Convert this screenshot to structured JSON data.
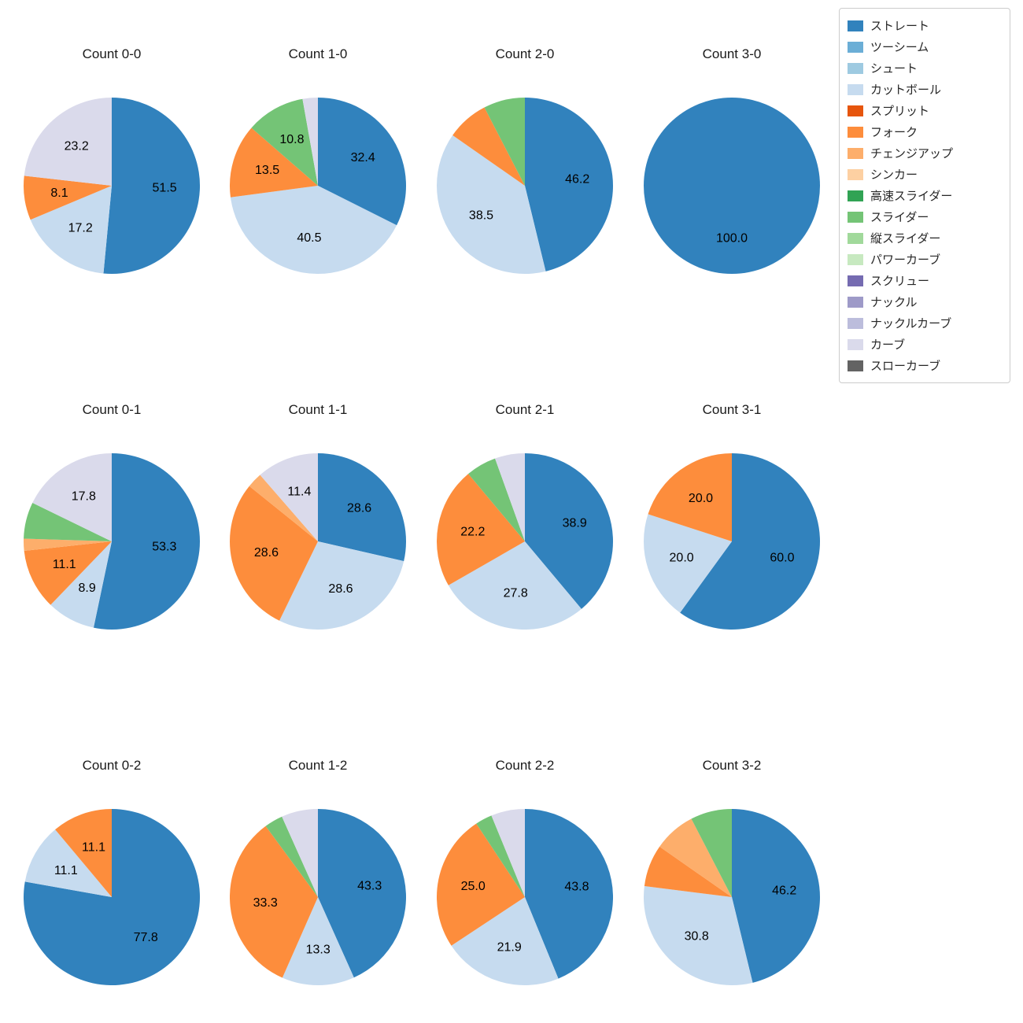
{
  "legend": {
    "items": [
      {
        "label": "ストレート",
        "color": "#3182bd"
      },
      {
        "label": "ツーシーム",
        "color": "#6baed6"
      },
      {
        "label": "シュート",
        "color": "#9ecae1"
      },
      {
        "label": "カットボール",
        "color": "#c6dbef"
      },
      {
        "label": "スプリット",
        "color": "#e6550d"
      },
      {
        "label": "フォーク",
        "color": "#fd8d3c"
      },
      {
        "label": "チェンジアップ",
        "color": "#fdae6b"
      },
      {
        "label": "シンカー",
        "color": "#fdd0a2"
      },
      {
        "label": "高速スライダー",
        "color": "#31a354"
      },
      {
        "label": "スライダー",
        "color": "#74c476"
      },
      {
        "label": "縦スライダー",
        "color": "#a1d99b"
      },
      {
        "label": "パワーカーブ",
        "color": "#c7e9c0"
      },
      {
        "label": "スクリュー",
        "color": "#756bb1"
      },
      {
        "label": "ナックル",
        "color": "#9e9ac8"
      },
      {
        "label": "ナックルカーブ",
        "color": "#bcbddc"
      },
      {
        "label": "カーブ",
        "color": "#dadaeb"
      },
      {
        "label": "スローカーブ",
        "color": "#636363"
      }
    ]
  },
  "chart_data": [
    {
      "type": "pie",
      "title": "Count 0-0",
      "slices": [
        {
          "label": "ストレート",
          "value": 51.5,
          "pct_label": "51.5"
        },
        {
          "label": "カットボール",
          "value": 17.2,
          "pct_label": "17.2"
        },
        {
          "label": "フォーク",
          "value": 8.1,
          "pct_label": "8.1"
        },
        {
          "label": "カーブ",
          "value": 23.2,
          "pct_label": "23.2"
        }
      ]
    },
    {
      "type": "pie",
      "title": "Count 1-0",
      "slices": [
        {
          "label": "ストレート",
          "value": 32.4,
          "pct_label": "32.4"
        },
        {
          "label": "カットボール",
          "value": 40.5,
          "pct_label": "40.5"
        },
        {
          "label": "フォーク",
          "value": 13.5,
          "pct_label": "13.5"
        },
        {
          "label": "スライダー",
          "value": 10.8,
          "pct_label": "10.8"
        },
        {
          "label": "カーブ",
          "value": 2.8,
          "pct_label": ""
        }
      ]
    },
    {
      "type": "pie",
      "title": "Count 2-0",
      "slices": [
        {
          "label": "ストレート",
          "value": 46.2,
          "pct_label": "46.2"
        },
        {
          "label": "カットボール",
          "value": 38.5,
          "pct_label": "38.5"
        },
        {
          "label": "フォーク",
          "value": 7.7,
          "pct_label": ""
        },
        {
          "label": "スライダー",
          "value": 7.6,
          "pct_label": ""
        }
      ]
    },
    {
      "type": "pie",
      "title": "Count 3-0",
      "slices": [
        {
          "label": "ストレート",
          "value": 100.0,
          "pct_label": "100.0"
        }
      ]
    },
    {
      "type": "pie",
      "title": "Count 0-1",
      "slices": [
        {
          "label": "ストレート",
          "value": 53.3,
          "pct_label": "53.3"
        },
        {
          "label": "カットボール",
          "value": 8.9,
          "pct_label": "8.9"
        },
        {
          "label": "フォーク",
          "value": 11.1,
          "pct_label": "11.1"
        },
        {
          "label": "チェンジアップ",
          "value": 2.2,
          "pct_label": ""
        },
        {
          "label": "スライダー",
          "value": 6.7,
          "pct_label": ""
        },
        {
          "label": "カーブ",
          "value": 17.8,
          "pct_label": "17.8"
        }
      ]
    },
    {
      "type": "pie",
      "title": "Count 1-1",
      "slices": [
        {
          "label": "ストレート",
          "value": 28.6,
          "pct_label": "28.6"
        },
        {
          "label": "カットボール",
          "value": 28.6,
          "pct_label": "28.6"
        },
        {
          "label": "フォーク",
          "value": 28.6,
          "pct_label": "28.6"
        },
        {
          "label": "チェンジアップ",
          "value": 2.8,
          "pct_label": ""
        },
        {
          "label": "カーブ",
          "value": 11.4,
          "pct_label": "11.4"
        }
      ]
    },
    {
      "type": "pie",
      "title": "Count 2-1",
      "slices": [
        {
          "label": "ストレート",
          "value": 38.9,
          "pct_label": "38.9"
        },
        {
          "label": "カットボール",
          "value": 27.8,
          "pct_label": "27.8"
        },
        {
          "label": "フォーク",
          "value": 22.2,
          "pct_label": "22.2"
        },
        {
          "label": "スライダー",
          "value": 5.6,
          "pct_label": ""
        },
        {
          "label": "カーブ",
          "value": 5.5,
          "pct_label": ""
        }
      ]
    },
    {
      "type": "pie",
      "title": "Count 3-1",
      "slices": [
        {
          "label": "ストレート",
          "value": 60.0,
          "pct_label": "60.0"
        },
        {
          "label": "カットボール",
          "value": 20.0,
          "pct_label": "20.0"
        },
        {
          "label": "フォーク",
          "value": 20.0,
          "pct_label": "20.0"
        }
      ]
    },
    {
      "type": "pie",
      "title": "Count 0-2",
      "slices": [
        {
          "label": "ストレート",
          "value": 77.8,
          "pct_label": "77.8"
        },
        {
          "label": "カットボール",
          "value": 11.1,
          "pct_label": "11.1"
        },
        {
          "label": "フォーク",
          "value": 11.1,
          "pct_label": "11.1"
        }
      ]
    },
    {
      "type": "pie",
      "title": "Count 1-2",
      "slices": [
        {
          "label": "ストレート",
          "value": 43.3,
          "pct_label": "43.3"
        },
        {
          "label": "カットボール",
          "value": 13.3,
          "pct_label": "13.3"
        },
        {
          "label": "フォーク",
          "value": 33.3,
          "pct_label": "33.3"
        },
        {
          "label": "スライダー",
          "value": 3.4,
          "pct_label": ""
        },
        {
          "label": "カーブ",
          "value": 6.7,
          "pct_label": ""
        }
      ]
    },
    {
      "type": "pie",
      "title": "Count 2-2",
      "slices": [
        {
          "label": "ストレート",
          "value": 43.8,
          "pct_label": "43.8"
        },
        {
          "label": "カットボール",
          "value": 21.9,
          "pct_label": "21.9"
        },
        {
          "label": "フォーク",
          "value": 25.0,
          "pct_label": "25.0"
        },
        {
          "label": "スライダー",
          "value": 3.1,
          "pct_label": ""
        },
        {
          "label": "カーブ",
          "value": 6.2,
          "pct_label": ""
        }
      ]
    },
    {
      "type": "pie",
      "title": "Count 3-2",
      "slices": [
        {
          "label": "ストレート",
          "value": 46.2,
          "pct_label": "46.2"
        },
        {
          "label": "カットボール",
          "value": 30.8,
          "pct_label": "30.8"
        },
        {
          "label": "フォーク",
          "value": 7.7,
          "pct_label": ""
        },
        {
          "label": "チェンジアップ",
          "value": 7.7,
          "pct_label": ""
        },
        {
          "label": "スライダー",
          "value": 7.6,
          "pct_label": ""
        }
      ]
    }
  ]
}
